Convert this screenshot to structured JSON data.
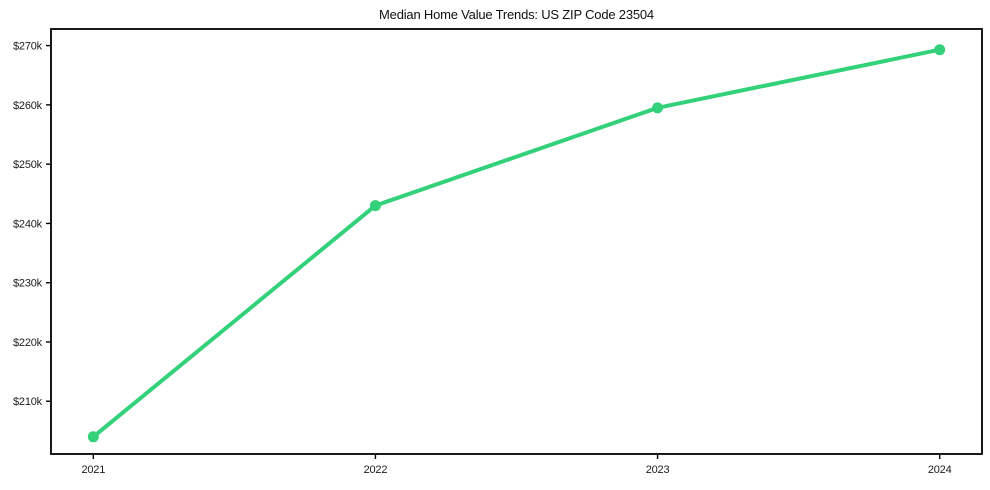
{
  "chart_data": {
    "type": "line",
    "title": "Median Home Value Trends: US ZIP Code 23504",
    "x": [
      2021,
      2022,
      2023,
      2024
    ],
    "x_tick_labels": [
      "2021",
      "2022",
      "2023",
      "2024"
    ],
    "values": [
      204000,
      243000,
      259500,
      269300
    ],
    "y_ticks": [
      210000,
      220000,
      230000,
      240000,
      250000,
      260000,
      270000
    ],
    "y_tick_labels": [
      "$210k",
      "$220k",
      "$230k",
      "$240k",
      "$250k",
      "$260k",
      "$270k"
    ],
    "xlim": [
      2020.85,
      2024.15
    ],
    "ylim": [
      201100,
      272800
    ],
    "grid": false,
    "legend": false,
    "xlabel": "",
    "ylabel": "",
    "line_color": "#33d17a",
    "marker_color": "#33d17a",
    "axis_color": "#000000",
    "tick_color": "#000000",
    "text_color": "#1c1c1c",
    "background_color": "#ffffff"
  }
}
